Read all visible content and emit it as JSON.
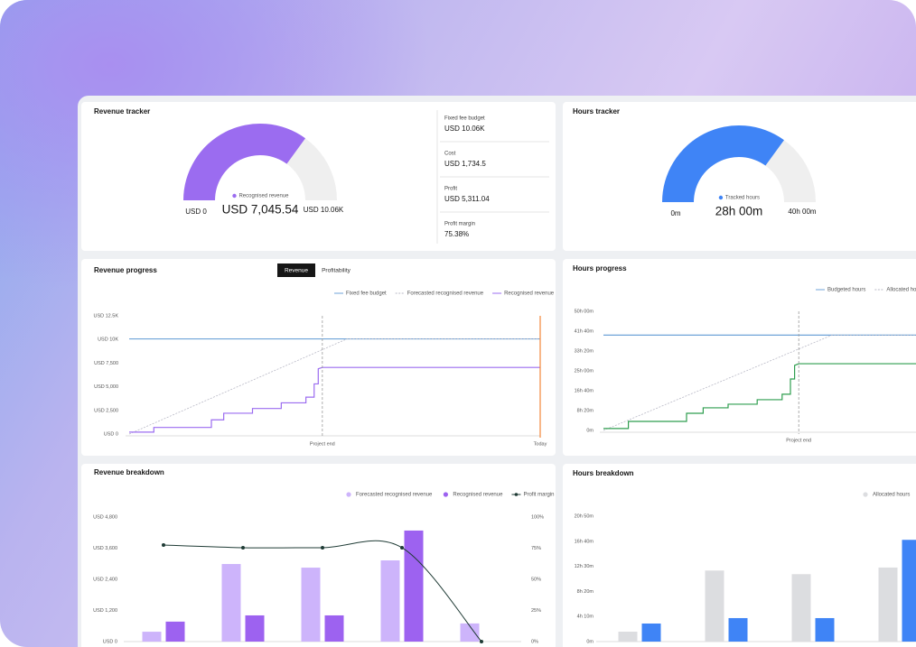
{
  "chart_data": [
    {
      "type": "gauge",
      "title": "Revenue tracker",
      "min": 0,
      "max": 10060,
      "min_label": "USD 0",
      "max_label": "USD 10.06K",
      "value": 7045.54,
      "value_label": "USD 7,045.54",
      "name": "Recognised revenue",
      "color": "#9b6cf0",
      "track_color": "#efefef",
      "stats": [
        {
          "label": "Fixed fee budget",
          "value": "USD 10.06K"
        },
        {
          "label": "Cost",
          "value": "USD 1,734.5"
        },
        {
          "label": "Profit",
          "value": "USD 5,311.04"
        },
        {
          "label": "Profit margin",
          "value": "75.38%"
        }
      ]
    },
    {
      "type": "gauge",
      "title": "Hours tracker",
      "min": 0,
      "max": 40,
      "min_label": "0m",
      "max_label": "40h 00m",
      "value": 28,
      "value_label": "28h 00m",
      "name": "Tracked hours",
      "color": "#3f84f6",
      "track_color": "#efefef"
    },
    {
      "type": "line",
      "title": "Revenue progress",
      "tabs": [
        "Revenue",
        "Profitability"
      ],
      "xlim": [
        0,
        100
      ],
      "ylim": [
        0,
        12500
      ],
      "yticks": [
        {
          "value": 0,
          "label": "USD 0"
        },
        {
          "value": 2500,
          "label": "USD 2,500"
        },
        {
          "value": 5000,
          "label": "USD 5,000"
        },
        {
          "value": 7500,
          "label": "USD 7,500"
        },
        {
          "value": 10000,
          "label": "USD 10K"
        },
        {
          "value": 12500,
          "label": "USD 12.5K"
        }
      ],
      "series": [
        {
          "name": "Fixed fee budget",
          "color": "#6fa3d8",
          "x": [
            0,
            100
          ],
          "values": [
            10060,
            10060
          ]
        },
        {
          "name": "Forecasted recognised revenue",
          "color": "#b9b9c6",
          "dash": true,
          "x": [
            0,
            53,
            100
          ],
          "values": [
            0,
            10060,
            10060
          ]
        },
        {
          "name": "Recognised revenue",
          "color": "#9b6cf0",
          "x": [
            0,
            6,
            6,
            20,
            20,
            23,
            23,
            30,
            30,
            37,
            37,
            43,
            43,
            45,
            45,
            46,
            46,
            47,
            100
          ],
          "values": [
            200,
            200,
            700,
            700,
            1500,
            1500,
            2200,
            2200,
            2700,
            2700,
            3300,
            3300,
            3900,
            3900,
            5300,
            5300,
            6900,
            7045.54,
            7045.54
          ]
        }
      ],
      "annotations": [
        {
          "x": 47,
          "label": "Project end",
          "color": "#9a9a9a",
          "dash": true
        },
        {
          "x": 100,
          "label": "Today",
          "color": "#f2873a"
        }
      ]
    },
    {
      "type": "line",
      "title": "Hours progress",
      "xlim": [
        0,
        100
      ],
      "ylim": [
        0,
        50
      ],
      "yticks": [
        {
          "value": 0,
          "label": "0m"
        },
        {
          "value": 8.3333,
          "label": "8h 20m"
        },
        {
          "value": 16.6667,
          "label": "16h 40m"
        },
        {
          "value": 25,
          "label": "25h 00m"
        },
        {
          "value": 33.3333,
          "label": "33h 20m"
        },
        {
          "value": 41.6667,
          "label": "41h 40m"
        },
        {
          "value": 50,
          "label": "50h 00m"
        }
      ],
      "series": [
        {
          "name": "Budgeted hours",
          "color": "#6fa3d8",
          "x": [
            0,
            100
          ],
          "values": [
            40,
            40
          ]
        },
        {
          "name": "Allocated hours",
          "color": "#b9b9c6",
          "dash": true,
          "x": [
            0,
            55,
            100
          ],
          "values": [
            0,
            40,
            40
          ]
        },
        {
          "color": "#2f9e4f",
          "x": [
            0,
            6,
            6,
            20,
            20,
            24,
            24,
            30,
            30,
            37,
            37,
            43,
            43,
            45,
            45,
            46,
            46,
            47,
            100
          ],
          "values": [
            0.8,
            0.8,
            3.8,
            3.8,
            7.2,
            7.2,
            9.5,
            9.5,
            11,
            11,
            12.9,
            12.9,
            15.2,
            15.2,
            21.6,
            21.6,
            27.3,
            28,
            28
          ]
        }
      ],
      "annotations": [
        {
          "x": 47,
          "label": "Project end",
          "color": "#9a9a9a",
          "dash": true
        }
      ]
    },
    {
      "type": "bar",
      "title": "Revenue breakdown",
      "categories": [
        null,
        null,
        null,
        null,
        null
      ],
      "ylim": [
        0,
        4800
      ],
      "yticks": [
        {
          "value": 0,
          "label": "USD 0"
        },
        {
          "value": 1200,
          "label": "USD 1,200"
        },
        {
          "value": 2400,
          "label": "USD 2,400"
        },
        {
          "value": 3600,
          "label": "USD 3,600"
        },
        {
          "value": 4800,
          "label": "USD 4,800"
        }
      ],
      "y2lim": [
        0,
        100
      ],
      "y2ticks": [
        {
          "value": 0,
          "label": "0%"
        },
        {
          "value": 25,
          "label": "25%"
        },
        {
          "value": 50,
          "label": "50%"
        },
        {
          "value": 75,
          "label": "75%"
        },
        {
          "value": 100,
          "label": "100%"
        }
      ],
      "series": [
        {
          "name": "Forecasted recognised revenue",
          "color": "#cdb4fb",
          "values": [
            380,
            2990,
            2850,
            3130,
            700
          ]
        },
        {
          "name": "Recognised revenue",
          "color": "#9d62f0",
          "values": [
            770,
            1010,
            1010,
            4280,
            null
          ]
        },
        {
          "name": "Profit margin",
          "color": "#1f3b35",
          "type": "line",
          "axis": "y2",
          "values": [
            77.5,
            75.4,
            75.4,
            75.4,
            0
          ]
        }
      ]
    },
    {
      "type": "bar",
      "title": "Hours breakdown",
      "categories": [
        null,
        null,
        null,
        null
      ],
      "ylim": [
        0,
        20.8333
      ],
      "yticks": [
        {
          "value": 0,
          "label": "0m"
        },
        {
          "value": 4.1667,
          "label": "4h 10m"
        },
        {
          "value": 8.3333,
          "label": "8h 20m"
        },
        {
          "value": 12.5,
          "label": "12h 30m"
        },
        {
          "value": 16.6667,
          "label": "16h 40m"
        },
        {
          "value": 20.8333,
          "label": "20h 50m"
        }
      ],
      "series": [
        {
          "name": "Allocated hours",
          "color": "#dcdde0",
          "values": [
            1.65,
            11.8,
            11.2,
            12.3
          ]
        },
        {
          "color": "#3f84f6",
          "values": [
            3.0,
            3.9,
            3.9,
            16.9
          ]
        }
      ]
    }
  ]
}
